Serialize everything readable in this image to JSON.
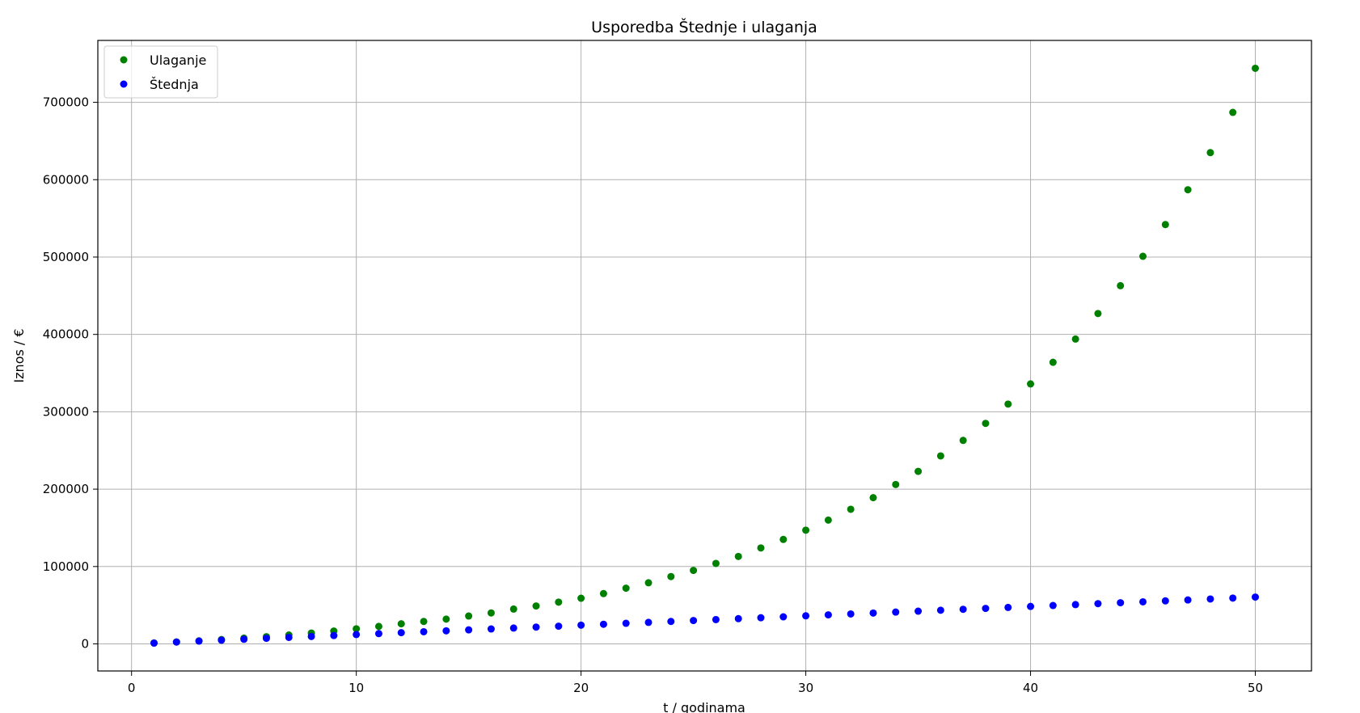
{
  "chart_data": {
    "type": "scatter",
    "title": "Usporedba Štednje i ulaganja",
    "xlabel": "t / godinama",
    "ylabel": "Iznos / €",
    "xlim": [
      -1.5,
      52.5
    ],
    "ylim": [
      -35000,
      780000
    ],
    "x_ticks": [
      0,
      10,
      20,
      30,
      40,
      50
    ],
    "x_tick_labels": [
      "0",
      "10",
      "20",
      "30",
      "40",
      "50"
    ],
    "y_ticks": [
      0,
      100000,
      200000,
      300000,
      400000,
      500000,
      600000,
      700000
    ],
    "y_tick_labels": [
      "0",
      "100000",
      "200000",
      "300000",
      "400000",
      "500000",
      "600000",
      "700000"
    ],
    "grid": true,
    "legend_position": "top-left",
    "x": [
      1,
      2,
      3,
      4,
      5,
      6,
      7,
      8,
      9,
      10,
      11,
      12,
      13,
      14,
      15,
      16,
      17,
      18,
      19,
      20,
      21,
      22,
      23,
      24,
      25,
      26,
      27,
      28,
      29,
      30,
      31,
      32,
      33,
      34,
      35,
      36,
      37,
      38,
      39,
      40,
      41,
      42,
      43,
      44,
      45,
      46,
      47,
      48,
      49,
      50
    ],
    "series": [
      {
        "name": "Ulaganje",
        "color": "#008000",
        "values": [
          1200,
          2500,
          3900,
          5600,
          7400,
          9300,
          11500,
          14000,
          16600,
          19500,
          22600,
          26000,
          29000,
          32000,
          36000,
          40000,
          45000,
          49000,
          54000,
          59000,
          65000,
          72000,
          79000,
          87000,
          95000,
          104000,
          113000,
          124000,
          135000,
          147000,
          160000,
          174000,
          189000,
          206000,
          223000,
          243000,
          263000,
          285000,
          310000,
          336000,
          364000,
          394000,
          427000,
          463000,
          501000,
          542000,
          587000,
          635000,
          687000,
          744000
        ]
      },
      {
        "name": "Štednja",
        "color": "#0000ff",
        "values": [
          1000,
          2400,
          3600,
          4800,
          6000,
          7200,
          8400,
          9600,
          10800,
          12100,
          13300,
          14500,
          15700,
          16900,
          18100,
          19300,
          20500,
          21700,
          22900,
          24200,
          25400,
          26600,
          27800,
          29000,
          30200,
          31400,
          32600,
          33800,
          35000,
          36300,
          37500,
          38700,
          39900,
          41100,
          42300,
          43500,
          44700,
          45900,
          47100,
          48400,
          49600,
          50800,
          52000,
          53200,
          54400,
          55600,
          56800,
          58000,
          59200,
          60500
        ]
      }
    ]
  }
}
